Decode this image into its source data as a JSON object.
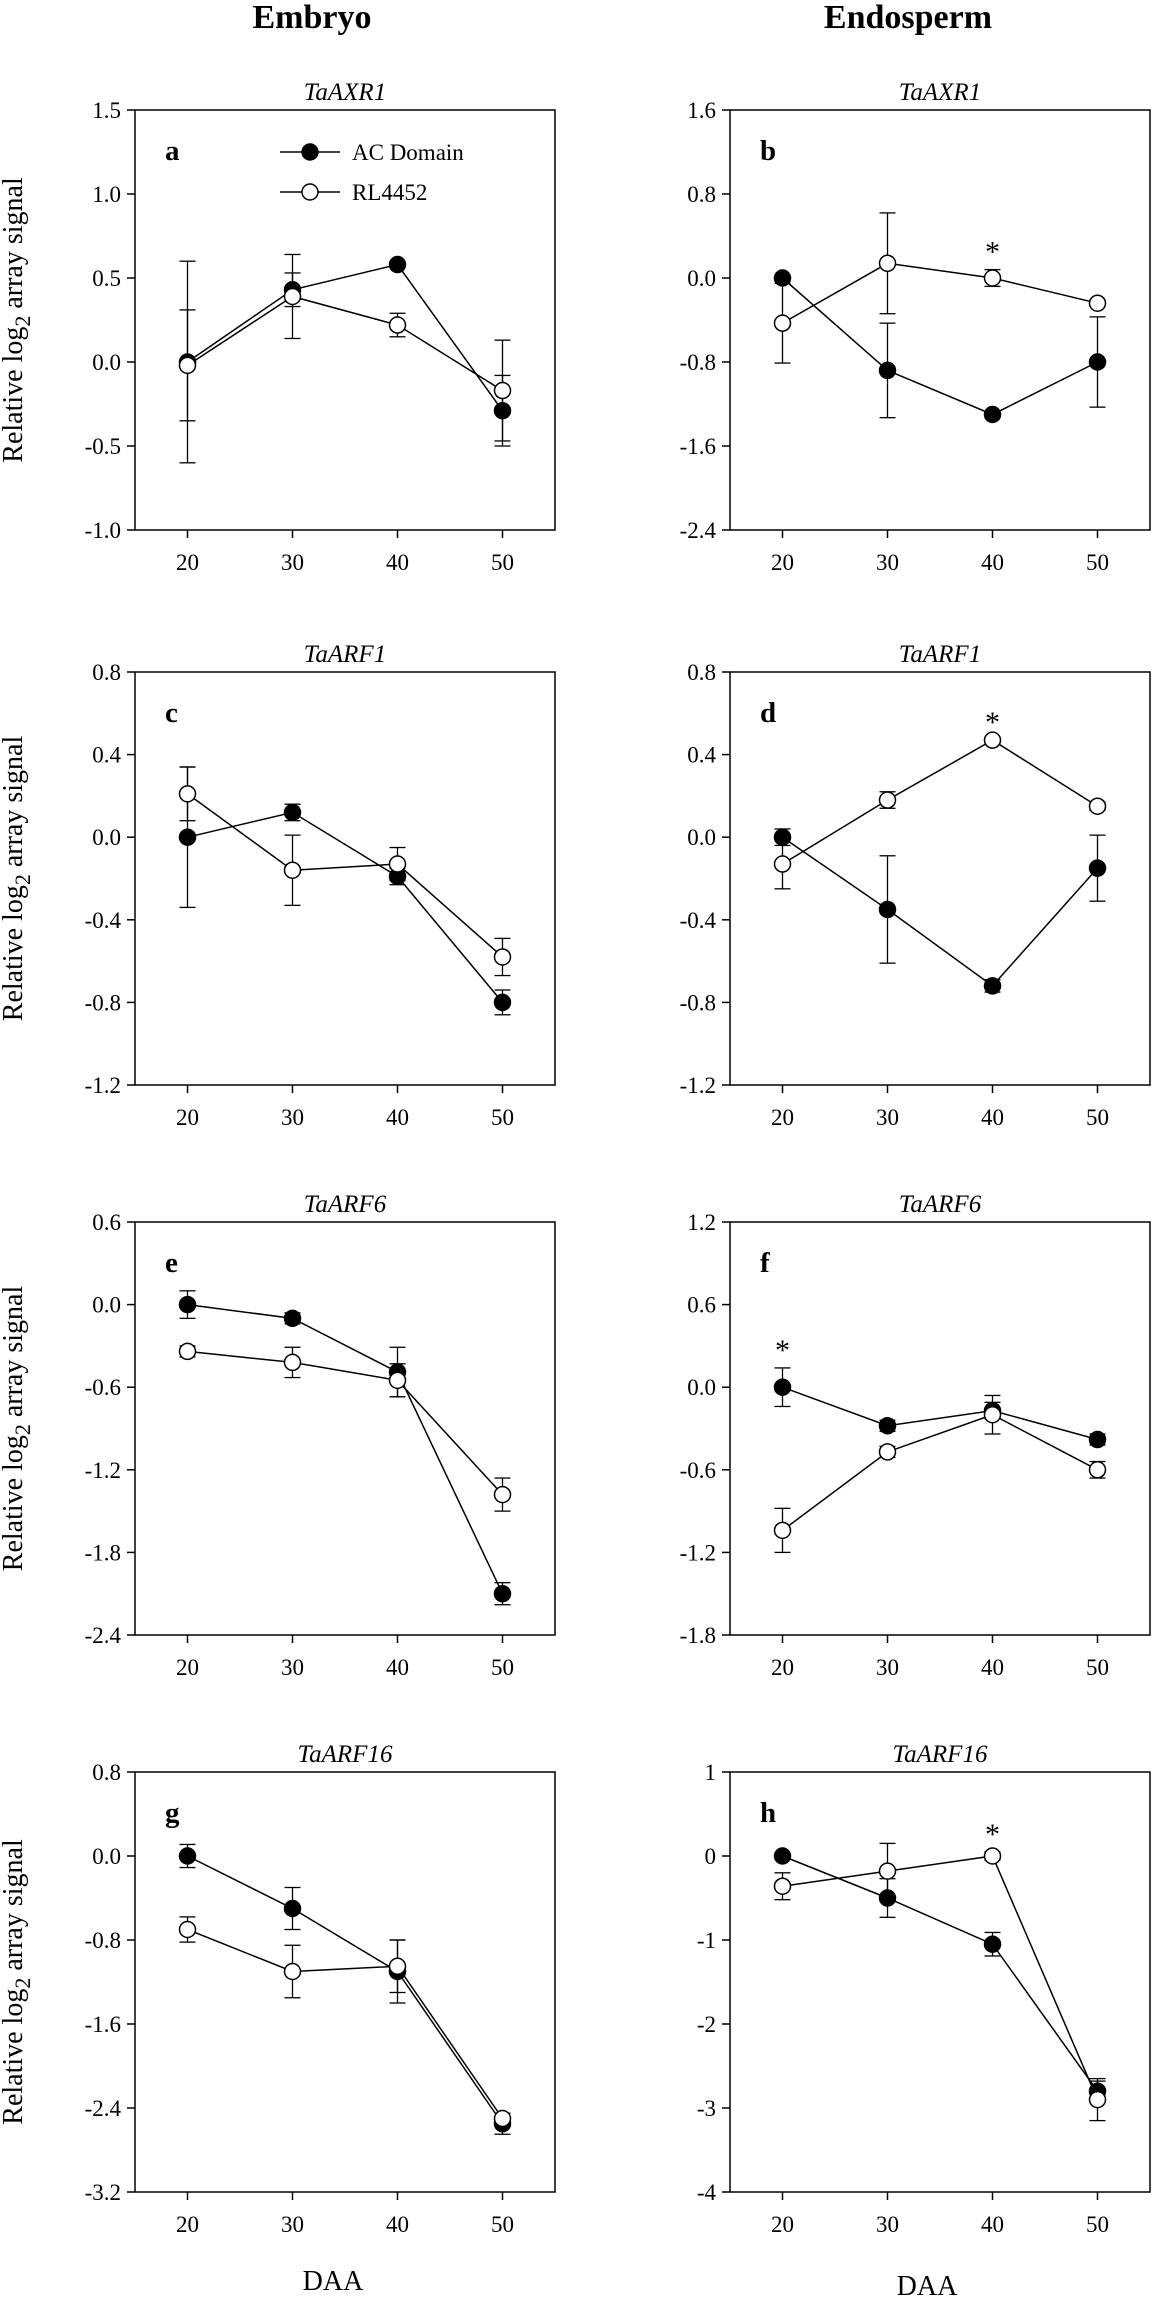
{
  "figure": {
    "col_headers": [
      "Embryo",
      "Endosperm"
    ],
    "ylabel_prefix": "Relative log",
    "ylabel_sub": "2",
    "ylabel_suffix": " array signal",
    "xlabel": "DAA",
    "legend": [
      "AC Domain",
      "RL4452"
    ]
  },
  "chart_data": [
    {
      "type": "line",
      "panel": "a",
      "title": "TaAXR1",
      "tissue": "Embryo",
      "x": [
        20,
        30,
        40,
        50
      ],
      "ylim": [
        -1.0,
        1.5
      ],
      "yticks": [
        -1.0,
        -0.5,
        0.0,
        0.5,
        1.0,
        1.5
      ],
      "ytick_labels": [
        "-1.0",
        "-0.5",
        "0.0",
        "0.5",
        "1.0",
        "1.5"
      ],
      "series": [
        {
          "name": "AC Domain",
          "marker": "filled",
          "values": [
            0.0,
            0.43,
            0.58,
            -0.29
          ],
          "err": [
            0.6,
            0.1,
            0.0,
            0.21
          ]
        },
        {
          "name": "RL4452",
          "marker": "open",
          "values": [
            -0.02,
            0.39,
            0.22,
            -0.17
          ],
          "err": [
            0.33,
            0.25,
            0.07,
            0.3
          ]
        }
      ],
      "significance": []
    },
    {
      "type": "line",
      "panel": "b",
      "title": "TaAXR1",
      "tissue": "Endosperm",
      "x": [
        20,
        30,
        40,
        50
      ],
      "ylim": [
        -2.4,
        1.6
      ],
      "yticks": [
        -2.4,
        -1.6,
        -0.8,
        0.0,
        0.8,
        1.6
      ],
      "ytick_labels": [
        "-2.4",
        "-1.6",
        "-0.8",
        "0.0",
        "0.8",
        "1.6"
      ],
      "series": [
        {
          "name": "AC Domain",
          "marker": "filled",
          "values": [
            0.0,
            -0.88,
            -1.3,
            -0.8
          ],
          "err": [
            0.0,
            0.45,
            0.0,
            0.43
          ]
        },
        {
          "name": "RL4452",
          "marker": "open",
          "values": [
            -0.43,
            0.14,
            0.0,
            -0.24
          ],
          "err": [
            0.38,
            0.48,
            0.08,
            0.0
          ]
        }
      ],
      "significance": [
        {
          "x": 40,
          "label": "*"
        }
      ]
    },
    {
      "type": "line",
      "panel": "c",
      "title": "TaARF1",
      "tissue": "Embryo",
      "x": [
        20,
        30,
        40,
        50
      ],
      "ylim": [
        -1.2,
        0.8
      ],
      "yticks": [
        -1.2,
        -0.8,
        -0.4,
        0.0,
        0.4,
        0.8
      ],
      "ytick_labels": [
        "-1.2",
        "-0.8",
        "-0.4",
        "0.0",
        "0.4",
        "0.8"
      ],
      "series": [
        {
          "name": "AC Domain",
          "marker": "filled",
          "values": [
            0.0,
            0.12,
            -0.19,
            -0.8
          ],
          "err": [
            0.34,
            0.04,
            0.04,
            0.06
          ]
        },
        {
          "name": "RL4452",
          "marker": "open",
          "values": [
            0.21,
            -0.16,
            -0.13,
            -0.58
          ],
          "err": [
            0.13,
            0.17,
            0.08,
            0.09
          ]
        }
      ],
      "significance": []
    },
    {
      "type": "line",
      "panel": "d",
      "title": "TaARF1",
      "tissue": "Endosperm",
      "x": [
        20,
        30,
        40,
        50
      ],
      "ylim": [
        -1.2,
        0.8
      ],
      "yticks": [
        -1.2,
        -0.8,
        -0.4,
        0.0,
        0.4,
        0.8
      ],
      "ytick_labels": [
        "-1.2",
        "-0.8",
        "-0.4",
        "0.0",
        "0.4",
        "0.8"
      ],
      "series": [
        {
          "name": "AC Domain",
          "marker": "filled",
          "values": [
            0.0,
            -0.35,
            -0.72,
            -0.15
          ],
          "err": [
            0.04,
            0.26,
            0.03,
            0.16
          ]
        },
        {
          "name": "RL4452",
          "marker": "open",
          "values": [
            -0.13,
            0.18,
            0.47,
            0.15
          ],
          "err": [
            0.12,
            0.04,
            0.0,
            0.02
          ]
        }
      ],
      "significance": [
        {
          "x": 40,
          "label": "*"
        }
      ]
    },
    {
      "type": "line",
      "panel": "e",
      "title": "TaARF6",
      "tissue": "Embryo",
      "x": [
        20,
        30,
        40,
        50
      ],
      "ylim": [
        -2.4,
        0.6
      ],
      "yticks": [
        -2.4,
        -1.8,
        -1.2,
        -0.6,
        0.0,
        0.6
      ],
      "ytick_labels": [
        "-2.4",
        "-1.8",
        "-1.2",
        "-0.6",
        "0.0",
        "0.6"
      ],
      "series": [
        {
          "name": "AC Domain",
          "marker": "filled",
          "values": [
            0.0,
            -0.1,
            -0.49,
            -2.1
          ],
          "err": [
            0.1,
            0.04,
            0.18,
            0.08
          ]
        },
        {
          "name": "RL4452",
          "marker": "open",
          "values": [
            -0.34,
            -0.42,
            -0.55,
            -1.38
          ],
          "err": [
            0.04,
            0.11,
            0.12,
            0.12
          ]
        }
      ],
      "significance": []
    },
    {
      "type": "line",
      "panel": "f",
      "title": "TaARF6",
      "tissue": "Endosperm",
      "x": [
        20,
        30,
        40,
        50
      ],
      "ylim": [
        -1.8,
        1.2
      ],
      "yticks": [
        -1.8,
        -1.2,
        -0.6,
        0.0,
        0.6,
        1.2
      ],
      "ytick_labels": [
        "-1.8",
        "-1.2",
        "-0.6",
        "0.0",
        "0.6",
        "1.2"
      ],
      "series": [
        {
          "name": "AC Domain",
          "marker": "filled",
          "values": [
            0.0,
            -0.28,
            -0.17,
            -0.38
          ],
          "err": [
            0.14,
            0.04,
            0.06,
            0.04
          ]
        },
        {
          "name": "RL4452",
          "marker": "open",
          "values": [
            -1.04,
            -0.47,
            -0.2,
            -0.6
          ],
          "err": [
            0.16,
            0.04,
            0.14,
            0.06
          ]
        }
      ],
      "significance": [
        {
          "x": 20,
          "label": "*"
        }
      ]
    },
    {
      "type": "line",
      "panel": "g",
      "title": "TaARF16",
      "tissue": "Embryo",
      "x": [
        20,
        30,
        40,
        50
      ],
      "ylim": [
        -3.2,
        0.8
      ],
      "yticks": [
        -3.2,
        -2.4,
        -1.6,
        -0.8,
        0.0,
        0.8
      ],
      "ytick_labels": [
        "-3.2",
        "-2.4",
        "-1.6",
        "-0.8",
        "0.0",
        "0.8"
      ],
      "series": [
        {
          "name": "AC Domain",
          "marker": "filled",
          "values": [
            0.0,
            -0.5,
            -1.1,
            -2.55
          ],
          "err": [
            0.11,
            0.2,
            0.3,
            0.1
          ]
        },
        {
          "name": "RL4452",
          "marker": "open",
          "values": [
            -0.7,
            -1.1,
            -1.05,
            -2.5
          ],
          "err": [
            0.12,
            0.25,
            0.25,
            0.05
          ]
        }
      ],
      "significance": []
    },
    {
      "type": "line",
      "panel": "h",
      "title": "TaARF16",
      "tissue": "Endosperm",
      "x": [
        20,
        30,
        40,
        50
      ],
      "ylim": [
        -4,
        1
      ],
      "yticks": [
        -4,
        -3,
        -2,
        -1,
        0,
        1
      ],
      "ytick_labels": [
        "-4",
        "-3",
        "-2",
        "-1",
        "0",
        "1"
      ],
      "series": [
        {
          "name": "AC Domain",
          "marker": "filled",
          "values": [
            0.0,
            -0.5,
            -1.05,
            -2.8
          ],
          "err": [
            0.0,
            0.23,
            0.14,
            0.12
          ]
        },
        {
          "name": "RL4452",
          "marker": "open",
          "values": [
            -0.36,
            -0.18,
            0.0,
            -2.9
          ],
          "err": [
            0.16,
            0.33,
            0.05,
            0.25
          ]
        }
      ],
      "significance": [
        {
          "x": 40,
          "label": "*"
        }
      ]
    }
  ]
}
